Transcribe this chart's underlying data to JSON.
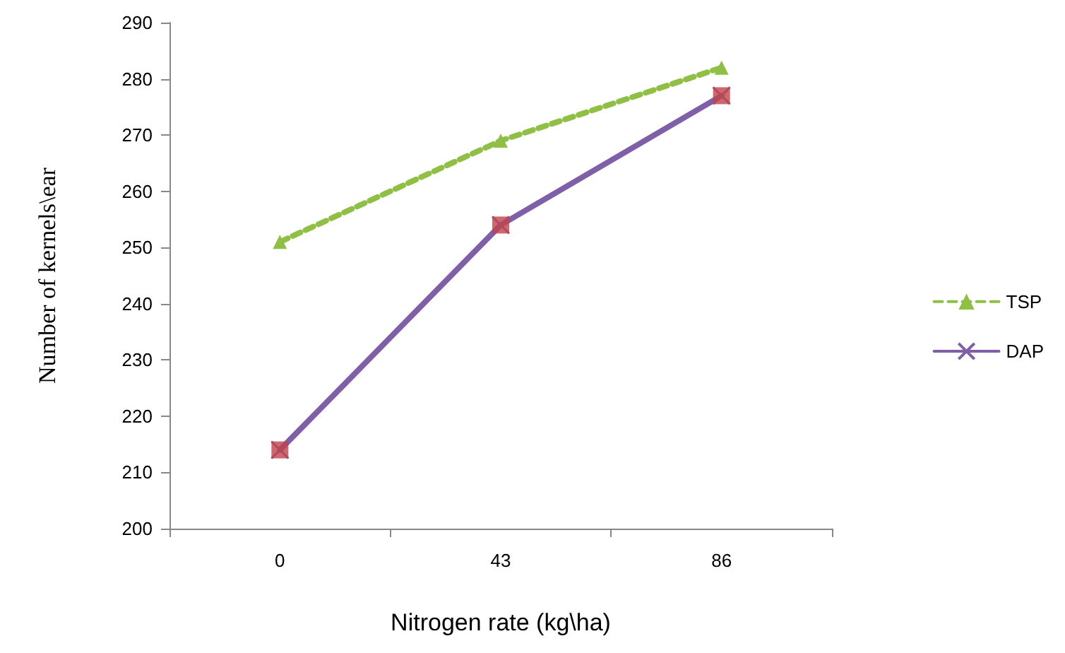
{
  "chart_data": {
    "type": "line",
    "xlabel": "Nitrogen rate (kg\\ha)",
    "ylabel": "Number of kernels\\ear",
    "categories": [
      "0",
      "43",
      "86"
    ],
    "series": [
      {
        "name": "TSP",
        "color": "#8fbf45",
        "values": [
          251,
          269,
          282
        ],
        "marker": "triangle",
        "line_style": "dashed"
      },
      {
        "name": "DAP",
        "color": "#7f5fa8",
        "values": [
          214,
          254,
          277
        ],
        "marker": "cross",
        "line_style": "solid"
      },
      {
        "type": "scatter",
        "color": "#c0434a",
        "values": [
          214,
          254,
          277
        ],
        "marker": "square"
      }
    ],
    "ylim": [
      200,
      290
    ],
    "yticks": [
      200,
      210,
      220,
      230,
      240,
      250,
      260,
      270,
      280,
      290
    ],
    "grid": false,
    "legend": "right"
  }
}
